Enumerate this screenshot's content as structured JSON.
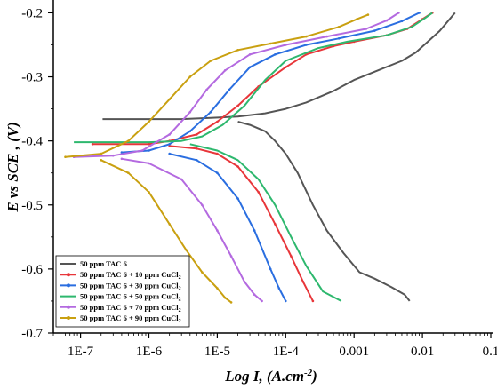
{
  "chart_data": {
    "type": "line",
    "title": "",
    "xlabel": "Log I, (A.cm",
    "xlabel_superscript": "-2",
    "xlabel_suffix": ")",
    "ylabel": "E vs SCE , (V)",
    "x_scale": "log",
    "xlim": [
      4e-08,
      0.1
    ],
    "ylim": [
      -0.7,
      -0.18
    ],
    "x_ticks": [
      {
        "value": 1e-07,
        "label": "1E-7"
      },
      {
        "value": 1e-06,
        "label": "1E-6"
      },
      {
        "value": 1e-05,
        "label": "1E-5"
      },
      {
        "value": 0.0001,
        "label": "1E-4"
      },
      {
        "value": 0.001,
        "label": "0.001"
      },
      {
        "value": 0.01,
        "label": "0.01"
      },
      {
        "value": 0.1,
        "label": "0.1"
      }
    ],
    "y_ticks": [
      {
        "value": -0.2,
        "label": "-0.2"
      },
      {
        "value": -0.3,
        "label": "-0.3"
      },
      {
        "value": -0.4,
        "label": "-0.4"
      },
      {
        "value": -0.5,
        "label": "-0.5"
      },
      {
        "value": -0.6,
        "label": "-0.6"
      },
      {
        "value": -0.7,
        "label": "-0.7"
      }
    ],
    "grid": false,
    "legend_position": "bottom-left",
    "series": [
      {
        "name": "50 ppm TAC 6",
        "name_suffix": "",
        "color": "#555555",
        "marker": "none",
        "anodic": [
          [
            2.1e-07,
            -0.366
          ],
          [
            1.5e-06,
            -0.366
          ],
          [
            3e-06,
            -0.366
          ],
          [
            8e-06,
            -0.364
          ],
          [
            2e-05,
            -0.362
          ],
          [
            5e-05,
            -0.357
          ],
          [
            0.0001,
            -0.35
          ],
          [
            0.0002,
            -0.34
          ],
          [
            0.0005,
            -0.322
          ],
          [
            0.001,
            -0.305
          ],
          [
            0.002,
            -0.292
          ],
          [
            0.005,
            -0.275
          ],
          [
            0.008,
            -0.262
          ],
          [
            0.012,
            -0.245
          ],
          [
            0.018,
            -0.228
          ],
          [
            0.03,
            -0.2
          ]
        ],
        "cathodic": [
          [
            2e-05,
            -0.37
          ],
          [
            3e-05,
            -0.375
          ],
          [
            5e-05,
            -0.385
          ],
          [
            7e-05,
            -0.4
          ],
          [
            0.0001,
            -0.42
          ],
          [
            0.00015,
            -0.45
          ],
          [
            0.00025,
            -0.5
          ],
          [
            0.0004,
            -0.54
          ],
          [
            0.0007,
            -0.575
          ],
          [
            0.0012,
            -0.605
          ],
          [
            0.002,
            -0.615
          ],
          [
            0.0035,
            -0.628
          ],
          [
            0.0055,
            -0.64
          ],
          [
            0.0065,
            -0.65
          ]
        ]
      },
      {
        "name": "50 ppm TAC 6 + 10 ppm CuCl",
        "name_suffix": "2",
        "color": "#e8363a",
        "marker": "dot",
        "anodic": [
          [
            1.5e-07,
            -0.405
          ],
          [
            1e-06,
            -0.405
          ],
          [
            2e-06,
            -0.4
          ],
          [
            5e-06,
            -0.39
          ],
          [
            1e-05,
            -0.37
          ],
          [
            2e-05,
            -0.345
          ],
          [
            4e-05,
            -0.315
          ],
          [
            0.0001,
            -0.285
          ],
          [
            0.0002,
            -0.265
          ],
          [
            0.0005,
            -0.252
          ],
          [
            0.001,
            -0.245
          ],
          [
            0.003,
            -0.235
          ],
          [
            0.006,
            -0.225
          ],
          [
            0.01,
            -0.21
          ],
          [
            0.014,
            -0.2
          ]
        ],
        "cathodic": [
          [
            2e-06,
            -0.408
          ],
          [
            5e-06,
            -0.412
          ],
          [
            1e-05,
            -0.42
          ],
          [
            2e-05,
            -0.44
          ],
          [
            4e-05,
            -0.48
          ],
          [
            7e-05,
            -0.53
          ],
          [
            0.00012,
            -0.58
          ],
          [
            0.00018,
            -0.62
          ],
          [
            0.00025,
            -0.65
          ]
        ]
      },
      {
        "name": "50 ppm TAC 6 + 30 ppm CuCl",
        "name_suffix": "2",
        "color": "#2a6ee0",
        "marker": "dot",
        "anodic": [
          [
            4e-07,
            -0.418
          ],
          [
            1e-06,
            -0.415
          ],
          [
            2e-06,
            -0.405
          ],
          [
            4e-06,
            -0.385
          ],
          [
            8e-06,
            -0.355
          ],
          [
            1.5e-05,
            -0.32
          ],
          [
            3e-05,
            -0.285
          ],
          [
            7e-05,
            -0.265
          ],
          [
            0.0002,
            -0.25
          ],
          [
            0.0006,
            -0.24
          ],
          [
            0.002,
            -0.228
          ],
          [
            0.005,
            -0.213
          ],
          [
            0.009,
            -0.2
          ]
        ],
        "cathodic": [
          [
            2e-06,
            -0.42
          ],
          [
            5e-06,
            -0.43
          ],
          [
            1e-05,
            -0.45
          ],
          [
            2e-05,
            -0.49
          ],
          [
            3.5e-05,
            -0.54
          ],
          [
            6e-05,
            -0.6
          ],
          [
            8e-05,
            -0.63
          ],
          [
            0.0001,
            -0.65
          ]
        ]
      },
      {
        "name": "50 ppm TAC 6 + 50 ppm CuCl",
        "name_suffix": "2",
        "color": "#2eb86e",
        "marker": "none",
        "anodic": [
          [
            8e-08,
            -0.402
          ],
          [
            1e-06,
            -0.402
          ],
          [
            3e-06,
            -0.4
          ],
          [
            6e-06,
            -0.393
          ],
          [
            1.2e-05,
            -0.375
          ],
          [
            2.5e-05,
            -0.345
          ],
          [
            5e-05,
            -0.305
          ],
          [
            0.0001,
            -0.275
          ],
          [
            0.0003,
            -0.255
          ],
          [
            0.0008,
            -0.245
          ],
          [
            0.003,
            -0.235
          ],
          [
            0.007,
            -0.222
          ],
          [
            0.011,
            -0.208
          ],
          [
            0.014,
            -0.2
          ]
        ],
        "cathodic": [
          [
            4e-06,
            -0.405
          ],
          [
            1e-05,
            -0.415
          ],
          [
            2e-05,
            -0.43
          ],
          [
            4e-05,
            -0.46
          ],
          [
            7e-05,
            -0.5
          ],
          [
            0.00012,
            -0.55
          ],
          [
            0.0002,
            -0.595
          ],
          [
            0.00035,
            -0.635
          ],
          [
            0.00065,
            -0.65
          ]
        ]
      },
      {
        "name": "50 ppm TAC 6 + 70 ppm CuCl",
        "name_suffix": "2",
        "color": "#b46ae0",
        "marker": "dot",
        "anodic": [
          [
            8e-08,
            -0.425
          ],
          [
            3e-07,
            -0.423
          ],
          [
            8e-07,
            -0.415
          ],
          [
            2e-06,
            -0.39
          ],
          [
            4e-06,
            -0.355
          ],
          [
            7e-06,
            -0.32
          ],
          [
            1.3e-05,
            -0.29
          ],
          [
            3e-05,
            -0.265
          ],
          [
            0.0001,
            -0.25
          ],
          [
            0.0004,
            -0.237
          ],
          [
            0.0015,
            -0.225
          ],
          [
            0.003,
            -0.212
          ],
          [
            0.0045,
            -0.2
          ]
        ],
        "cathodic": [
          [
            4e-07,
            -0.428
          ],
          [
            1e-06,
            -0.435
          ],
          [
            3e-06,
            -0.46
          ],
          [
            6e-06,
            -0.5
          ],
          [
            1e-05,
            -0.54
          ],
          [
            1.6e-05,
            -0.58
          ],
          [
            2.5e-05,
            -0.62
          ],
          [
            3.5e-05,
            -0.64
          ],
          [
            4.5e-05,
            -0.65
          ]
        ]
      },
      {
        "name": "50 ppm TAC 6 + 90 ppm CuCl",
        "name_suffix": "2",
        "color": "#c9a010",
        "marker": "dot",
        "anodic": [
          [
            6e-08,
            -0.425
          ],
          [
            2e-07,
            -0.42
          ],
          [
            5e-07,
            -0.4
          ],
          [
            1e-06,
            -0.37
          ],
          [
            2e-06,
            -0.335
          ],
          [
            4e-06,
            -0.3
          ],
          [
            8e-06,
            -0.275
          ],
          [
            2e-05,
            -0.258
          ],
          [
            6e-05,
            -0.248
          ],
          [
            0.0002,
            -0.237
          ],
          [
            0.0006,
            -0.222
          ],
          [
            0.0011,
            -0.21
          ],
          [
            0.0016,
            -0.203
          ]
        ],
        "cathodic": [
          [
            2e-07,
            -0.43
          ],
          [
            5e-07,
            -0.45
          ],
          [
            1e-06,
            -0.48
          ],
          [
            2e-06,
            -0.53
          ],
          [
            3.5e-06,
            -0.57
          ],
          [
            6e-06,
            -0.605
          ],
          [
            1e-05,
            -0.63
          ],
          [
            1.3e-05,
            -0.645
          ],
          [
            1.6e-05,
            -0.652
          ]
        ]
      }
    ]
  }
}
